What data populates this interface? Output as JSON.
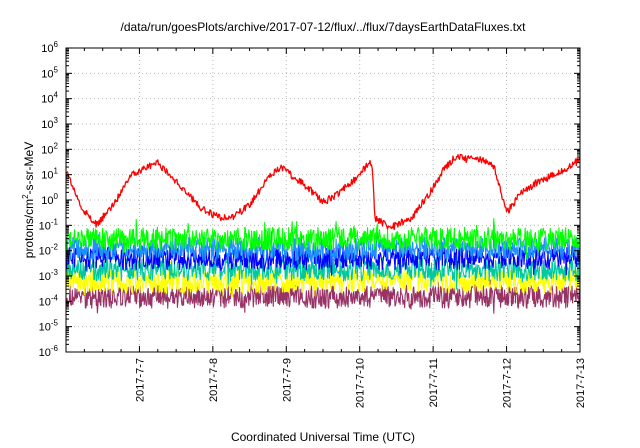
{
  "chart_data": {
    "type": "line",
    "title": "/data/run/goesPlots/archive/2017-07-12/flux/../flux/7daysEarthDataFluxes.txt",
    "xlabel": "Coordinated Universal Time (UTC)",
    "ylabel": {
      "base": "protons/cm",
      "sup": "2",
      "rest": "-s-sr-MeV"
    },
    "yscale": "log",
    "ylim_exponents": [
      -6,
      6
    ],
    "yticks": [
      {
        "base": "10",
        "exp": "-6"
      },
      {
        "base": "10",
        "exp": "-5"
      },
      {
        "base": "10",
        "exp": "-4"
      },
      {
        "base": "10",
        "exp": "-3"
      },
      {
        "base": "10",
        "exp": "-2"
      },
      {
        "base": "10",
        "exp": "-1"
      },
      {
        "base": "10",
        "exp": "0"
      },
      {
        "base": "10",
        "exp": "1"
      },
      {
        "base": "10",
        "exp": "2"
      },
      {
        "base": "10",
        "exp": "3"
      },
      {
        "base": "10",
        "exp": "4"
      },
      {
        "base": "10",
        "exp": "5"
      },
      {
        "base": "10",
        "exp": "6"
      }
    ],
    "xlim": [
      "2017-07-06",
      "2017-07-13"
    ],
    "xticks": [
      "2017-7-7",
      "2017-7-8",
      "2017-7-9",
      "2017-7-10",
      "2017-7-11",
      "2017-7-12",
      "2017-7-13"
    ],
    "grid": true,
    "legend": "none",
    "series": [
      {
        "color": "#ff0000",
        "x": [
          "2017-07-06 00:00",
          "2017-07-06 05:00",
          "2017-07-06 10:00",
          "2017-07-06 16:00",
          "2017-07-06 21:00",
          "2017-07-07 06:00",
          "2017-07-07 14:00",
          "2017-07-07 20:00",
          "2017-07-08 02:00",
          "2017-07-08 06:00",
          "2017-07-08 12:00",
          "2017-07-08 18:00",
          "2017-07-08 22:00",
          "2017-07-09 06:00",
          "2017-07-09 12:00",
          "2017-07-09 16:00",
          "2017-07-09 22:00",
          "2017-07-10 02:00",
          "2017-07-10 04:00",
          "2017-07-10 05:00",
          "2017-07-10 10:00",
          "2017-07-10 17:00",
          "2017-07-10 23:00",
          "2017-07-11 04:00",
          "2017-07-11 08:00",
          "2017-07-11 10:00",
          "2017-07-11 14:00",
          "2017-07-11 20:00",
          "2017-07-12 00:00",
          "2017-07-12 04:00",
          "2017-07-12 10:00",
          "2017-07-12 14:00",
          "2017-07-12 19:00",
          "2017-07-13 00:00"
        ],
        "y": [
          15,
          0.5,
          0.1,
          0.8,
          10,
          30,
          3,
          0.5,
          0.2,
          0.2,
          0.6,
          8,
          20,
          4,
          0.8,
          1.5,
          6,
          20,
          30,
          0.2,
          0.08,
          0.2,
          2,
          20,
          60,
          40,
          50,
          20,
          0.3,
          1.5,
          5,
          8,
          15,
          40
        ]
      },
      {
        "color": "#00ff00",
        "x": [
          "2017-07-06 00:00",
          "2017-07-13 00:00"
        ],
        "y": [
          0.03,
          0.03
        ]
      },
      {
        "color": "#1e90ff",
        "x": [
          "2017-07-06 00:00",
          "2017-07-13 00:00"
        ],
        "y": [
          0.012,
          0.012
        ]
      },
      {
        "color": "#0000ff",
        "x": [
          "2017-07-06 00:00",
          "2017-07-13 00:00"
        ],
        "y": [
          0.005,
          0.005
        ]
      },
      {
        "color": "#00c8a0",
        "x": [
          "2017-07-06 00:00",
          "2017-07-13 00:00"
        ],
        "y": [
          0.0018,
          0.0018
        ]
      },
      {
        "color": "#ffff00",
        "x": [
          "2017-07-06 00:00",
          "2017-07-13 00:00"
        ],
        "y": [
          0.0006,
          0.0006
        ]
      },
      {
        "color": "#993366",
        "x": [
          "2017-07-06 00:00",
          "2017-07-13 00:00"
        ],
        "y": [
          0.00015,
          0.00015
        ]
      }
    ]
  }
}
